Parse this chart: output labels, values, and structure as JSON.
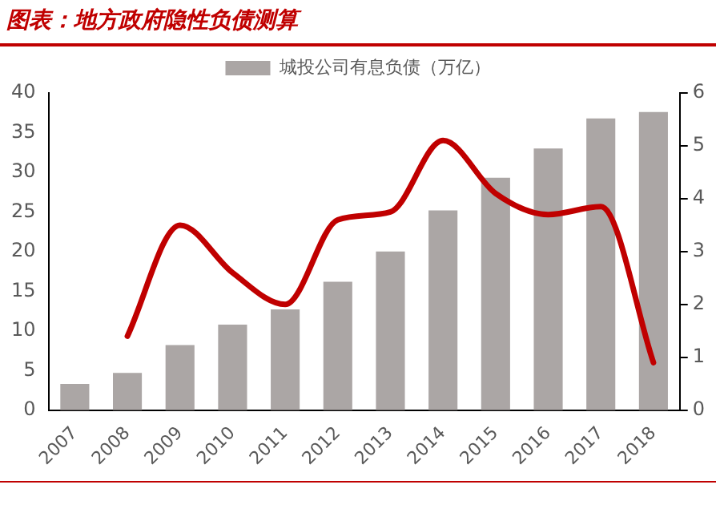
{
  "chart_data": {
    "type": "bar",
    "title": "图表：地方政府隐性负债测算",
    "categories": [
      "2007",
      "2008",
      "2009",
      "2010",
      "2011",
      "2012",
      "2013",
      "2014",
      "2015",
      "2016",
      "2017",
      "2018"
    ],
    "series": [
      {
        "name": "城投公司有息负债（万亿）",
        "color": "#aba6a5",
        "values": [
          3.3,
          4.7,
          8.2,
          10.8,
          12.7,
          16.2,
          20.0,
          25.2,
          29.3,
          33.0,
          36.8,
          37.6
        ]
      },
      {
        "type": "line",
        "axis": "y2",
        "color": "#c00000",
        "values": [
          null,
          1.4,
          3.5,
          2.6,
          2.0,
          3.6,
          3.75,
          5.1,
          4.1,
          3.7,
          3.85,
          0.9
        ]
      }
    ],
    "ylim": [
      0,
      40
    ],
    "yticks": [
      0,
      5,
      10,
      15,
      20,
      25,
      30,
      35,
      40
    ],
    "y2lim": [
      0,
      6
    ],
    "y2ticks": [
      0,
      1,
      2,
      3,
      4,
      5,
      6
    ],
    "grid": false,
    "legend": "top",
    "marker": "none"
  }
}
